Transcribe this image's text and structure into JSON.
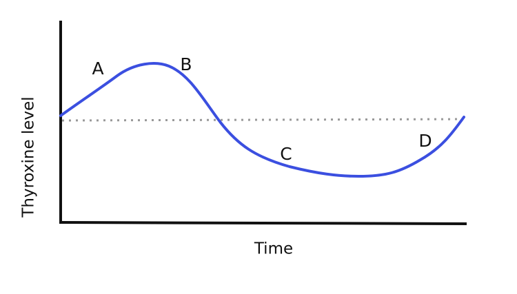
{
  "axes": {
    "y_label": "Thyroxine level",
    "x_label": "Time"
  },
  "points": [
    {
      "label": "A"
    },
    {
      "label": "B"
    },
    {
      "label": "C"
    },
    {
      "label": "D"
    }
  ]
}
